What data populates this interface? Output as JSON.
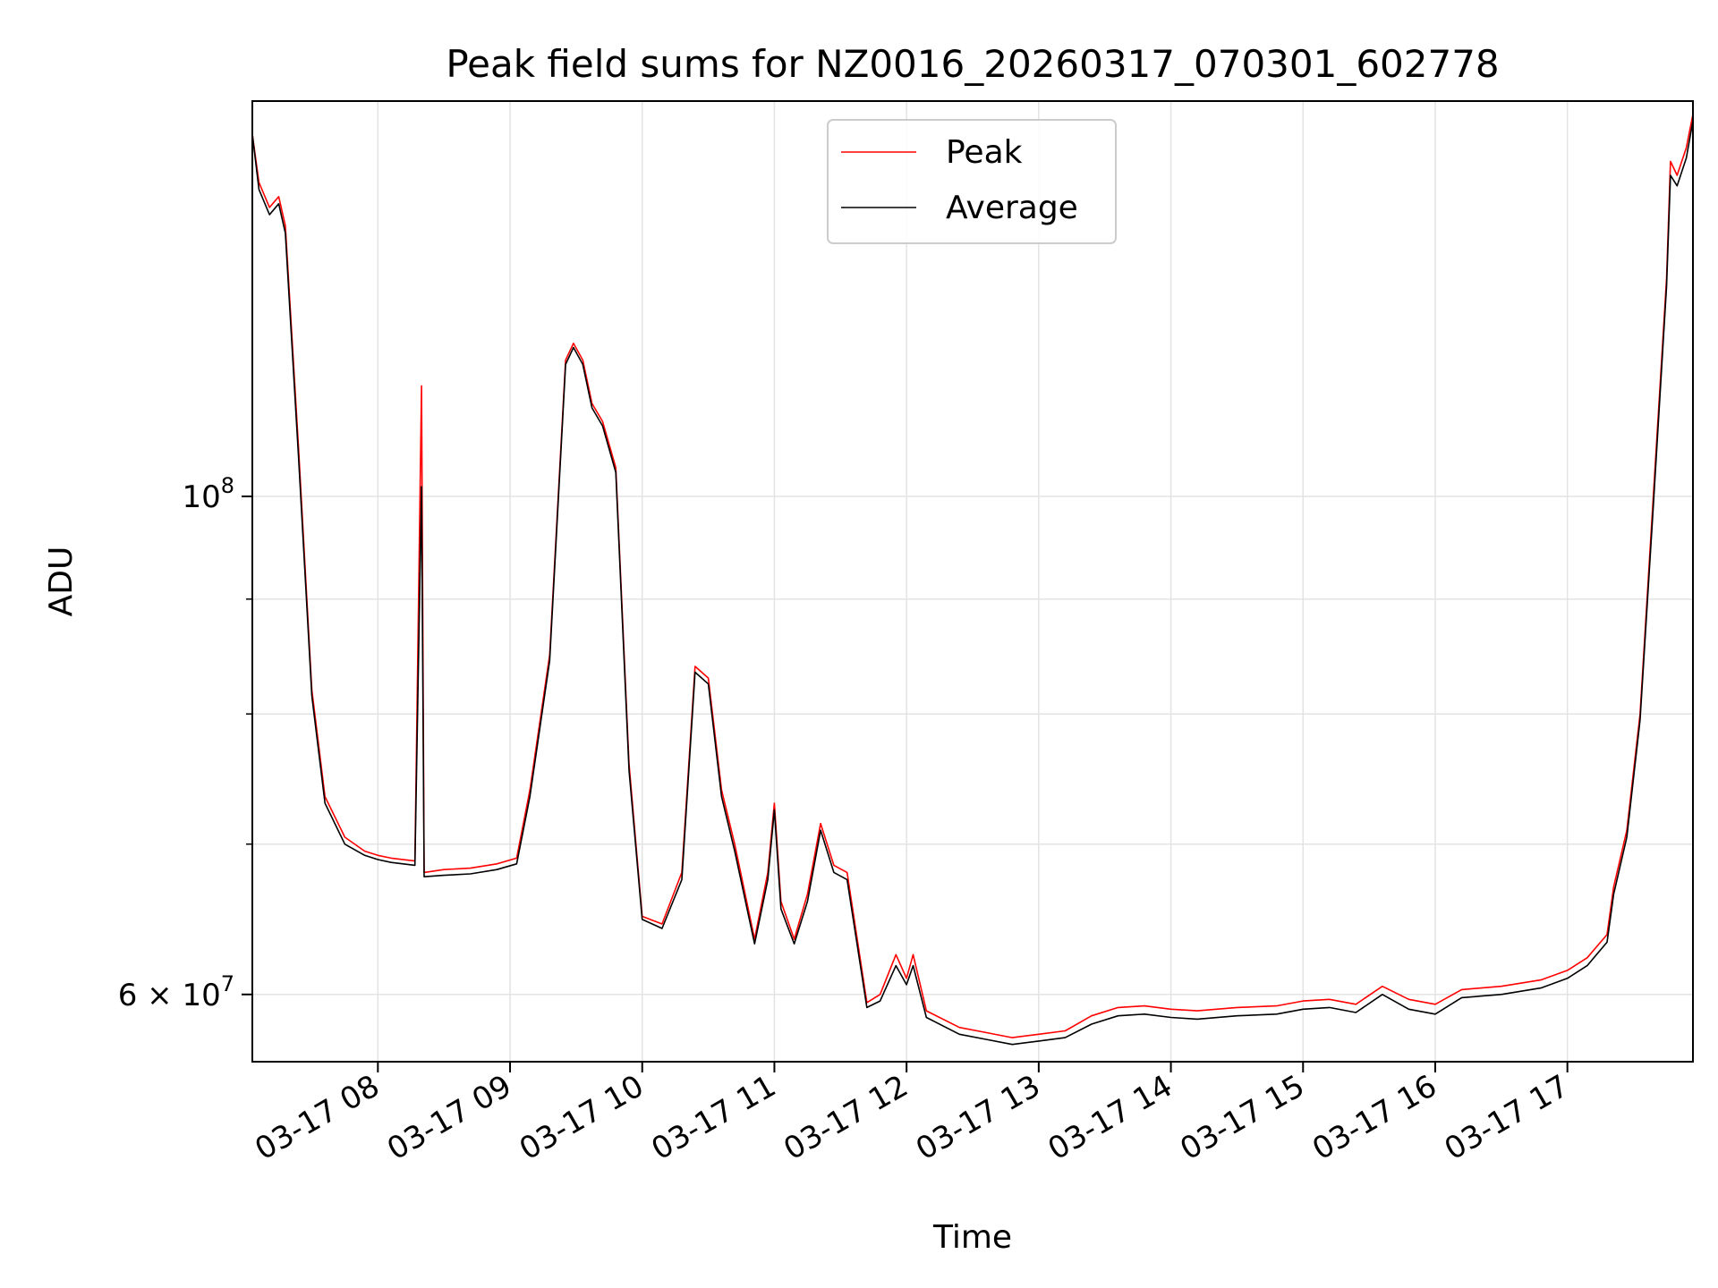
{
  "chart_data": {
    "type": "line",
    "title": "Peak field sums for NZ0016_20260317_070301_602778",
    "xlabel": "Time",
    "ylabel": "ADU",
    "yscale": "log",
    "ylim": [
      56000000,
      150000000
    ],
    "xlim_hours": [
      7.05,
      17.95
    ],
    "x_ticks": [
      {
        "label": "03-17 08",
        "hour": 8
      },
      {
        "label": "03-17 09",
        "hour": 9
      },
      {
        "label": "03-17 10",
        "hour": 10
      },
      {
        "label": "03-17 11",
        "hour": 11
      },
      {
        "label": "03-17 12",
        "hour": 12
      },
      {
        "label": "03-17 13",
        "hour": 13
      },
      {
        "label": "03-17 14",
        "hour": 14
      },
      {
        "label": "03-17 15",
        "hour": 15
      },
      {
        "label": "03-17 16",
        "hour": 16
      },
      {
        "label": "03-17 17",
        "hour": 17
      }
    ],
    "y_major_ticks": [
      {
        "value": 100000000,
        "mantissa": "",
        "base": "10",
        "exp": "8"
      },
      {
        "value": 60000000,
        "mantissa": "6 × ",
        "base": "10",
        "exp": "7"
      }
    ],
    "y_minor_gridlines": [
      70000000,
      80000000,
      90000000
    ],
    "grid": true,
    "legend_position": "upper-center",
    "series": [
      {
        "name": "Peak",
        "color": "#ff0000",
        "points": [
          [
            7.05,
            145000000
          ],
          [
            7.1,
            138000000
          ],
          [
            7.18,
            134500000
          ],
          [
            7.25,
            136000000
          ],
          [
            7.3,
            132000000
          ],
          [
            7.4,
            105000000
          ],
          [
            7.5,
            82000000
          ],
          [
            7.6,
            73500000
          ],
          [
            7.75,
            70500000
          ],
          [
            7.9,
            69500000
          ],
          [
            8.0,
            69200000
          ],
          [
            8.1,
            69000000
          ],
          [
            8.28,
            68800000
          ],
          [
            8.33,
            112000000
          ],
          [
            8.35,
            68000000
          ],
          [
            8.5,
            68200000
          ],
          [
            8.7,
            68300000
          ],
          [
            8.9,
            68600000
          ],
          [
            9.05,
            69000000
          ],
          [
            9.15,
            74000000
          ],
          [
            9.3,
            85000000
          ],
          [
            9.42,
            115000000
          ],
          [
            9.48,
            117000000
          ],
          [
            9.55,
            115000000
          ],
          [
            9.62,
            110000000
          ],
          [
            9.7,
            108000000
          ],
          [
            9.8,
            103000000
          ],
          [
            9.9,
            76000000
          ],
          [
            10.0,
            65000000
          ],
          [
            10.15,
            64500000
          ],
          [
            10.3,
            68000000
          ],
          [
            10.4,
            84000000
          ],
          [
            10.5,
            83000000
          ],
          [
            10.6,
            74000000
          ],
          [
            10.7,
            70000000
          ],
          [
            10.85,
            63500000
          ],
          [
            10.95,
            68000000
          ],
          [
            11.0,
            73000000
          ],
          [
            11.05,
            66000000
          ],
          [
            11.15,
            63500000
          ],
          [
            11.25,
            66500000
          ],
          [
            11.35,
            71500000
          ],
          [
            11.45,
            68500000
          ],
          [
            11.55,
            68000000
          ],
          [
            11.7,
            59500000
          ],
          [
            11.8,
            60000000
          ],
          [
            11.92,
            62500000
          ],
          [
            12.0,
            61000000
          ],
          [
            12.05,
            62500000
          ],
          [
            12.15,
            59000000
          ],
          [
            12.4,
            58000000
          ],
          [
            12.6,
            57700000
          ],
          [
            12.8,
            57400000
          ],
          [
            13.0,
            57600000
          ],
          [
            13.2,
            57800000
          ],
          [
            13.4,
            58700000
          ],
          [
            13.6,
            59200000
          ],
          [
            13.8,
            59300000
          ],
          [
            14.0,
            59100000
          ],
          [
            14.2,
            59000000
          ],
          [
            14.5,
            59200000
          ],
          [
            14.8,
            59300000
          ],
          [
            15.0,
            59600000
          ],
          [
            15.2,
            59700000
          ],
          [
            15.4,
            59400000
          ],
          [
            15.6,
            60500000
          ],
          [
            15.8,
            59700000
          ],
          [
            16.0,
            59400000
          ],
          [
            16.2,
            60300000
          ],
          [
            16.5,
            60500000
          ],
          [
            16.8,
            60900000
          ],
          [
            17.0,
            61500000
          ],
          [
            17.15,
            62300000
          ],
          [
            17.3,
            63800000
          ],
          [
            17.35,
            67000000
          ],
          [
            17.45,
            71000000
          ],
          [
            17.55,
            80000000
          ],
          [
            17.65,
            100000000
          ],
          [
            17.75,
            125000000
          ],
          [
            17.78,
            141000000
          ],
          [
            17.83,
            139000000
          ],
          [
            17.9,
            143000000
          ],
          [
            17.95,
            148000000
          ]
        ]
      },
      {
        "name": "Average",
        "color": "#000000",
        "points": [
          [
            7.05,
            145000000
          ],
          [
            7.1,
            137000000
          ],
          [
            7.18,
            133500000
          ],
          [
            7.25,
            135000000
          ],
          [
            7.3,
            131000000
          ],
          [
            7.4,
            104000000
          ],
          [
            7.5,
            81500000
          ],
          [
            7.6,
            73000000
          ],
          [
            7.75,
            70000000
          ],
          [
            7.9,
            69200000
          ],
          [
            8.0,
            68900000
          ],
          [
            8.1,
            68700000
          ],
          [
            8.28,
            68500000
          ],
          [
            8.33,
            101000000
          ],
          [
            8.35,
            67700000
          ],
          [
            8.5,
            67800000
          ],
          [
            8.7,
            67900000
          ],
          [
            8.9,
            68200000
          ],
          [
            9.05,
            68600000
          ],
          [
            9.15,
            73500000
          ],
          [
            9.3,
            84500000
          ],
          [
            9.42,
            114500000
          ],
          [
            9.48,
            116500000
          ],
          [
            9.55,
            114500000
          ],
          [
            9.62,
            109500000
          ],
          [
            9.7,
            107500000
          ],
          [
            9.8,
            102500000
          ],
          [
            9.9,
            75500000
          ],
          [
            10.0,
            64800000
          ],
          [
            10.15,
            64200000
          ],
          [
            10.3,
            67500000
          ],
          [
            10.4,
            83500000
          ],
          [
            10.5,
            82500000
          ],
          [
            10.6,
            73500000
          ],
          [
            10.7,
            69500000
          ],
          [
            10.85,
            63200000
          ],
          [
            10.95,
            67500000
          ],
          [
            11.0,
            72500000
          ],
          [
            11.05,
            65500000
          ],
          [
            11.15,
            63200000
          ],
          [
            11.25,
            66000000
          ],
          [
            11.35,
            71000000
          ],
          [
            11.45,
            68000000
          ],
          [
            11.55,
            67500000
          ],
          [
            11.7,
            59200000
          ],
          [
            11.8,
            59600000
          ],
          [
            11.92,
            61800000
          ],
          [
            12.0,
            60600000
          ],
          [
            12.05,
            61800000
          ],
          [
            12.15,
            58600000
          ],
          [
            12.4,
            57600000
          ],
          [
            12.6,
            57300000
          ],
          [
            12.8,
            57000000
          ],
          [
            13.0,
            57200000
          ],
          [
            13.2,
            57400000
          ],
          [
            13.4,
            58200000
          ],
          [
            13.6,
            58700000
          ],
          [
            13.8,
            58800000
          ],
          [
            14.0,
            58600000
          ],
          [
            14.2,
            58500000
          ],
          [
            14.5,
            58700000
          ],
          [
            14.8,
            58800000
          ],
          [
            15.0,
            59100000
          ],
          [
            15.2,
            59200000
          ],
          [
            15.4,
            58900000
          ],
          [
            15.6,
            60000000
          ],
          [
            15.8,
            59100000
          ],
          [
            16.0,
            58800000
          ],
          [
            16.2,
            59800000
          ],
          [
            16.5,
            60000000
          ],
          [
            16.8,
            60400000
          ],
          [
            17.0,
            61000000
          ],
          [
            17.15,
            61800000
          ],
          [
            17.3,
            63300000
          ],
          [
            17.35,
            66500000
          ],
          [
            17.45,
            70500000
          ],
          [
            17.55,
            79500000
          ],
          [
            17.65,
            99000000
          ],
          [
            17.75,
            124000000
          ],
          [
            17.78,
            139000000
          ],
          [
            17.83,
            137500000
          ],
          [
            17.9,
            141500000
          ],
          [
            17.95,
            147000000
          ]
        ]
      }
    ]
  }
}
